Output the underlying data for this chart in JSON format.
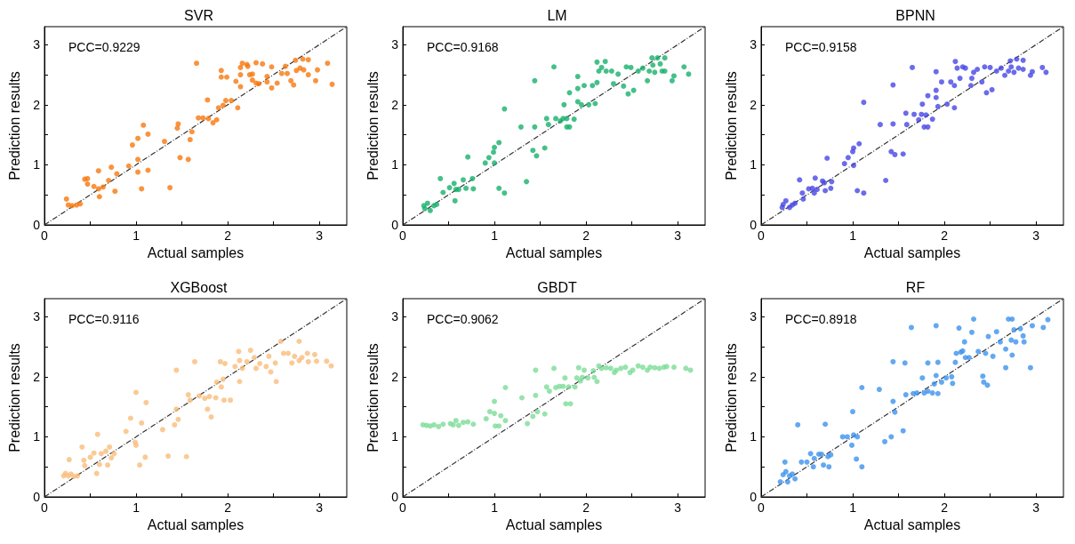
{
  "chart_data": [
    {
      "type": "scatter",
      "title": "SVR",
      "xlabel": "Actual samples",
      "ylabel": "Prediction results",
      "annotations": [
        "PCC=0.9229"
      ],
      "xlim": [
        0,
        3.3
      ],
      "ylim": [
        0,
        3.3
      ],
      "xticks": [
        0,
        {
          "value": 0.5,
          "label": null
        },
        1,
        {
          "value": 1.5,
          "label": null
        },
        2,
        {
          "value": 2.5,
          "label": null
        },
        3
      ],
      "yticks": [
        0,
        {
          "value": 0.5,
          "label": null
        },
        1,
        {
          "value": 1.5,
          "label": null
        },
        2,
        {
          "value": 2.5,
          "label": null
        },
        3
      ],
      "marker": "circle",
      "series": [
        {
          "color": "#f7780e",
          "x": [
            0.24,
            0.26,
            0.3,
            0.35,
            0.39,
            0.44,
            0.47,
            0.47,
            0.59,
            0.54,
            0.59,
            0.64,
            0.7,
            0.73,
            0.79,
            0.77,
            0.6,
            0.92,
            0.96,
            1.02,
            1.02,
            1.02,
            1.06,
            1.08,
            1.13,
            1.13,
            1.31,
            1.37,
            1.45,
            1.46,
            1.48,
            1.57,
            1.59,
            1.61,
            1.66,
            1.78,
            1.68,
            1.73,
            1.79,
            1.84,
            1.88,
            1.9,
            1.95,
            1.98,
            2.04,
            1.93,
            1.93,
            1.99,
            2.11,
            2.09,
            2.14,
            2.14,
            2.14,
            2.16,
            2.21,
            2.22,
            2.24,
            2.27,
            2.31,
            2.27,
            2.31,
            2.34,
            2.38,
            2.43,
            2.43,
            2.48,
            2.48,
            2.54,
            2.59,
            2.63,
            2.65,
            2.69,
            2.72,
            2.74,
            2.75,
            2.79,
            2.82,
            2.83,
            2.88,
            2.88,
            2.96,
            2.98,
            3.09,
            3.14
          ],
          "values": [
            0.43,
            0.33,
            0.32,
            0.33,
            0.35,
            0.76,
            0.77,
            0.68,
            0.9,
            0.64,
            0.6,
            0.63,
            0.74,
            0.96,
            0.85,
            0.56,
            0.47,
            0.98,
            1.33,
            1.44,
            1.09,
            0.88,
            0.6,
            1.66,
            1.51,
            0.91,
            1.39,
            0.62,
            1.61,
            1.68,
            1.12,
            1.09,
            1.42,
            1.55,
            2.69,
            2.08,
            1.78,
            1.78,
            1.77,
            1.7,
            1.75,
            1.95,
            1.99,
            2.07,
            2.07,
            2.57,
            2.46,
            2.46,
            1.95,
            2.39,
            2.62,
            2.5,
            2.3,
            2.69,
            2.67,
            2.64,
            2.5,
            2.51,
            2.7,
            2.41,
            2.36,
            2.35,
            2.68,
            2.47,
            2.38,
            2.28,
            2.63,
            2.36,
            2.52,
            2.64,
            2.52,
            2.4,
            2.33,
            2.74,
            2.57,
            2.61,
            2.76,
            2.58,
            2.75,
            2.5,
            2.4,
            2.58,
            2.69,
            2.34
          ]
        },
        {
          "type": "line",
          "color": "#333333",
          "line_style": "dashed",
          "marker": "none",
          "x": [
            0,
            3.3
          ],
          "values": [
            0,
            3.3
          ]
        }
      ]
    },
    {
      "type": "scatter",
      "title": "LM",
      "xlabel": "Actual samples",
      "ylabel": "Prediction results",
      "annotations": [
        "PCC=0.9168"
      ],
      "xlim": [
        0,
        3.3
      ],
      "ylim": [
        0,
        3.3
      ],
      "xticks": [
        0,
        {
          "value": 0.5,
          "label": null
        },
        1,
        {
          "value": 1.5,
          "label": null
        },
        2,
        {
          "value": 2.5,
          "label": null
        },
        3
      ],
      "yticks": [
        0,
        {
          "value": 0.5,
          "label": null
        },
        1,
        {
          "value": 1.5,
          "label": null
        },
        2,
        {
          "value": 2.5,
          "label": null
        },
        3
      ],
      "marker": "circle",
      "series": [
        {
          "color": "#16b06c",
          "x": [
            0.23,
            0.24,
            0.27,
            0.3,
            0.34,
            0.37,
            0.41,
            0.44,
            0.51,
            0.56,
            0.58,
            0.61,
            0.57,
            0.66,
            0.69,
            0.71,
            0.76,
            0.77,
            0.9,
            0.94,
            0.99,
            1.0,
            1.0,
            1.05,
            1.05,
            1.11,
            1.11,
            1.29,
            1.35,
            1.44,
            1.44,
            1.42,
            1.46,
            1.55,
            1.57,
            1.59,
            1.65,
            1.67,
            1.72,
            1.75,
            1.79,
            1.82,
            1.79,
            1.87,
            1.76,
            1.82,
            1.91,
            1.91,
            1.91,
            1.95,
            1.98,
            2.03,
            2.07,
            2.1,
            2.12,
            2.12,
            2.14,
            2.17,
            2.21,
            2.22,
            2.28,
            2.3,
            2.35,
            2.41,
            2.44,
            2.46,
            2.49,
            2.52,
            2.57,
            2.62,
            2.67,
            2.69,
            2.72,
            2.73,
            2.75,
            2.78,
            2.81,
            2.83,
            2.86,
            2.86,
            2.94,
            2.96,
            3.07,
            3.12
          ],
          "values": [
            0.32,
            0.27,
            0.36,
            0.24,
            0.32,
            0.34,
            0.77,
            0.54,
            0.62,
            0.69,
            0.59,
            0.59,
            0.4,
            0.75,
            0.61,
            1.13,
            0.77,
            0.6,
            1.03,
            1.12,
            1.21,
            1.29,
            1.03,
            0.61,
            1.37,
            0.53,
            1.93,
            1.63,
            0.72,
            2.4,
            1.63,
            1.24,
            1.15,
            1.28,
            1.77,
            1.67,
            2.63,
            1.77,
            1.73,
            1.77,
            1.63,
            1.63,
            1.77,
            1.76,
            2.0,
            2.2,
            2.47,
            2.27,
            2.05,
            2.0,
            2.32,
            2.0,
            2.32,
            2.02,
            2.37,
            2.71,
            2.56,
            2.62,
            2.72,
            2.56,
            2.56,
            2.35,
            2.51,
            2.31,
            2.63,
            2.18,
            2.62,
            2.24,
            2.56,
            2.61,
            2.4,
            2.56,
            2.78,
            2.66,
            2.54,
            2.78,
            2.68,
            2.56,
            2.78,
            2.56,
            2.4,
            2.48,
            2.63,
            2.51
          ]
        },
        {
          "type": "line",
          "color": "#333333",
          "line_style": "dashed",
          "marker": "none",
          "x": [
            0,
            3.3
          ],
          "values": [
            0,
            3.3
          ]
        }
      ]
    },
    {
      "type": "scatter",
      "title": "BPNN",
      "xlabel": "Actual samples",
      "ylabel": "Prediction results",
      "annotations": [
        "PCC=0.9158"
      ],
      "xlim": [
        0,
        3.3
      ],
      "ylim": [
        0,
        3.3
      ],
      "xticks": [
        0,
        {
          "value": 0.5,
          "label": null
        },
        1,
        {
          "value": 1.5,
          "label": null
        },
        2,
        {
          "value": 2.5,
          "label": null
        },
        3
      ],
      "yticks": [
        0,
        {
          "value": 0.5,
          "label": null
        },
        1,
        {
          "value": 1.5,
          "label": null
        },
        2,
        {
          "value": 2.5,
          "label": null
        },
        3
      ],
      "marker": "circle",
      "series": [
        {
          "color": "#4646e6",
          "x": [
            0.23,
            0.24,
            0.27,
            0.31,
            0.34,
            0.37,
            0.42,
            0.45,
            0.46,
            0.52,
            0.56,
            0.58,
            0.59,
            0.61,
            0.67,
            0.69,
            0.7,
            0.72,
            0.76,
            0.77,
            0.91,
            0.95,
            1.0,
            1.01,
            1.01,
            1.05,
            1.07,
            1.12,
            1.12,
            1.3,
            1.36,
            1.44,
            1.44,
            1.42,
            1.46,
            1.55,
            1.58,
            1.59,
            1.65,
            1.67,
            1.72,
            1.75,
            1.78,
            1.82,
            1.8,
            1.87,
            1.76,
            1.82,
            1.91,
            1.91,
            1.91,
            1.93,
            1.97,
            2.03,
            2.07,
            2.11,
            2.11,
            2.12,
            2.14,
            2.17,
            2.2,
            2.23,
            2.29,
            2.3,
            2.32,
            2.36,
            2.41,
            2.44,
            2.46,
            2.5,
            2.52,
            2.57,
            2.62,
            2.66,
            2.7,
            2.72,
            2.73,
            2.76,
            2.79,
            2.81,
            2.86,
            2.86,
            2.94,
            2.96,
            3.07,
            3.11
          ],
          "values": [
            0.29,
            0.34,
            0.4,
            0.29,
            0.33,
            0.36,
            0.75,
            0.53,
            0.43,
            0.6,
            0.61,
            0.53,
            0.78,
            0.59,
            0.73,
            0.7,
            0.57,
            1.11,
            0.61,
            0.72,
            1.02,
            1.12,
            1.22,
            1.28,
            0.99,
            0.57,
            1.35,
            0.53,
            2.04,
            1.67,
            0.74,
            2.33,
            1.68,
            1.22,
            1.17,
            1.18,
            1.86,
            1.67,
            2.62,
            1.84,
            1.75,
            1.84,
            1.63,
            1.63,
            1.83,
            1.76,
            2.01,
            2.15,
            2.55,
            2.24,
            2.12,
            1.97,
            2.38,
            2.01,
            2.38,
            1.95,
            2.32,
            2.72,
            2.61,
            2.44,
            2.63,
            2.61,
            2.32,
            2.44,
            2.54,
            2.59,
            2.38,
            2.63,
            2.2,
            2.62,
            2.25,
            2.56,
            2.61,
            2.49,
            2.56,
            2.73,
            2.63,
            2.54,
            2.76,
            2.61,
            2.74,
            2.59,
            2.49,
            2.55,
            2.62,
            2.54
          ]
        },
        {
          "type": "line",
          "color": "#333333",
          "line_style": "dashed",
          "marker": "none",
          "x": [
            0,
            3.3
          ],
          "values": [
            0,
            3.3
          ]
        }
      ]
    },
    {
      "type": "scatter",
      "title": "XGBoost",
      "xlabel": "Actual samples",
      "ylabel": "Prediction results",
      "annotations": [
        "PCC=0.9116"
      ],
      "xlim": [
        0,
        3.3
      ],
      "ylim": [
        0,
        3.3
      ],
      "xticks": [
        0,
        {
          "value": 0.5,
          "label": null
        },
        1,
        {
          "value": 1.5,
          "label": null
        },
        2,
        {
          "value": 2.5,
          "label": null
        },
        3
      ],
      "yticks": [
        0,
        {
          "value": 0.5,
          "label": null
        },
        1,
        {
          "value": 1.5,
          "label": null
        },
        2,
        {
          "value": 2.5,
          "label": null
        },
        3
      ],
      "marker": "circle",
      "series": [
        {
          "color": "#f9bd7c",
          "x": [
            0.21,
            0.23,
            0.26,
            0.29,
            0.32,
            0.36,
            0.27,
            0.41,
            0.43,
            0.44,
            0.5,
            0.54,
            0.57,
            0.58,
            0.6,
            0.62,
            0.67,
            0.69,
            0.71,
            0.73,
            0.76,
            0.89,
            0.94,
            1.0,
            0.99,
            1.0,
            1.04,
            1.06,
            1.1,
            1.11,
            1.29,
            1.35,
            1.44,
            1.44,
            1.42,
            1.46,
            1.55,
            1.57,
            1.59,
            1.64,
            1.69,
            1.75,
            1.8,
            1.78,
            1.82,
            1.87,
            1.88,
            1.93,
            1.95,
            1.92,
            1.97,
            1.96,
            2.03,
            2.08,
            2.13,
            2.12,
            2.13,
            2.16,
            2.21,
            2.25,
            2.29,
            2.31,
            2.35,
            2.42,
            2.47,
            2.45,
            2.52,
            2.53,
            2.58,
            2.61,
            2.66,
            2.7,
            2.73,
            2.78,
            2.78,
            2.81,
            2.87,
            2.88,
            2.95,
            2.97,
            3.08,
            3.13
          ],
          "values": [
            0.35,
            0.39,
            0.35,
            0.38,
            0.34,
            0.35,
            0.62,
            0.83,
            0.61,
            0.52,
            0.66,
            0.73,
            0.39,
            1.04,
            0.54,
            0.72,
            0.76,
            0.53,
            0.83,
            0.65,
            0.72,
            1.09,
            1.31,
            1.74,
            0.91,
            0.86,
            0.53,
            1.23,
            0.66,
            1.57,
            1.12,
            0.68,
            2.11,
            1.46,
            1.2,
            1.29,
            0.67,
            1.7,
            1.61,
            2.25,
            1.68,
            1.64,
            1.67,
            1.46,
            1.33,
            1.65,
            1.91,
            1.83,
            1.96,
            2.25,
            2.22,
            1.61,
            1.61,
            2.17,
            1.92,
            2.42,
            2.27,
            2.14,
            2.25,
            2.44,
            2.32,
            2.14,
            2.22,
            2.17,
            2.08,
            2.34,
            2.23,
            1.92,
            2.59,
            2.39,
            2.39,
            2.23,
            2.34,
            2.59,
            2.27,
            2.32,
            2.39,
            2.25,
            2.37,
            2.26,
            2.26,
            2.18
          ]
        },
        {
          "type": "line",
          "color": "#333333",
          "line_style": "dashed",
          "marker": "none",
          "x": [
            0,
            3.3
          ],
          "values": [
            0,
            3.3
          ]
        }
      ]
    },
    {
      "type": "scatter",
      "title": "GBDT",
      "xlabel": "Actual samples",
      "ylabel": "Prediction results",
      "annotations": [
        "PCC=0.9062"
      ],
      "xlim": [
        0,
        3.3
      ],
      "ylim": [
        0,
        3.3
      ],
      "xticks": [
        0,
        {
          "value": 0.5,
          "label": null
        },
        1,
        {
          "value": 1.5,
          "label": null
        },
        2,
        {
          "value": 2.5,
          "label": null
        },
        3
      ],
      "yticks": [
        0,
        {
          "value": 0.5,
          "label": null
        },
        1,
        {
          "value": 1.5,
          "label": null
        },
        2,
        {
          "value": 2.5,
          "label": null
        },
        3
      ],
      "marker": "circle",
      "series": [
        {
          "color": "#7ddc99",
          "x": [
            0.22,
            0.26,
            0.3,
            0.34,
            0.39,
            0.44,
            0.52,
            0.55,
            0.58,
            0.61,
            0.66,
            0.71,
            0.77,
            0.91,
            0.95,
            1.0,
            1.0,
            1.01,
            1.05,
            1.07,
            1.12,
            1.12,
            1.3,
            1.36,
            1.42,
            1.45,
            1.45,
            1.47,
            1.55,
            1.57,
            1.6,
            1.65,
            1.67,
            1.71,
            1.75,
            1.77,
            1.78,
            1.83,
            1.81,
            1.88,
            1.9,
            1.92,
            1.94,
            1.96,
            1.98,
            2.02,
            2.09,
            2.12,
            2.08,
            2.14,
            2.17,
            2.22,
            2.27,
            2.31,
            2.33,
            2.38,
            2.43,
            2.48,
            2.51,
            2.57,
            2.62,
            2.67,
            2.7,
            2.75,
            2.8,
            2.85,
            2.88,
            2.96,
            3.09,
            3.14
          ],
          "values": [
            1.2,
            1.19,
            1.18,
            1.2,
            1.17,
            1.21,
            1.22,
            1.2,
            1.27,
            1.19,
            1.24,
            1.25,
            1.21,
            1.3,
            1.42,
            1.59,
            1.39,
            1.18,
            1.18,
            1.35,
            1.82,
            1.27,
            1.65,
            1.22,
            1.34,
            2.11,
            1.69,
            1.42,
            1.38,
            1.83,
            1.76,
            2.14,
            1.82,
            1.84,
            1.84,
            1.98,
            1.55,
            1.55,
            1.83,
            1.83,
            1.98,
            2.15,
            1.93,
            1.99,
            2.11,
            1.98,
            1.99,
            1.92,
            2.1,
            2.18,
            2.14,
            2.15,
            2.14,
            2.07,
            2.11,
            2.14,
            2.16,
            2.07,
            2.11,
            2.18,
            2.16,
            2.11,
            2.16,
            2.15,
            2.14,
            2.16,
            2.17,
            2.16,
            2.14,
            2.11
          ]
        },
        {
          "type": "line",
          "color": "#333333",
          "line_style": "dashed",
          "marker": "none",
          "x": [
            0,
            3.3
          ],
          "values": [
            0,
            3.3
          ]
        }
      ]
    },
    {
      "type": "scatter",
      "title": "RF",
      "xlabel": "Actual samples",
      "ylabel": "Prediction results",
      "annotations": [
        "PCC=0.8918"
      ],
      "xlim": [
        0,
        3.3
      ],
      "ylim": [
        0,
        3.3
      ],
      "xticks": [
        0,
        {
          "value": 0.5,
          "label": null
        },
        1,
        {
          "value": 1.5,
          "label": null
        },
        2,
        {
          "value": 2.5,
          "label": null
        },
        3
      ],
      "yticks": [
        0,
        {
          "value": 0.5,
          "label": null
        },
        1,
        {
          "value": 1.5,
          "label": null
        },
        2,
        {
          "value": 2.5,
          "label": null
        },
        3
      ],
      "marker": "circle",
      "series": [
        {
          "color": "#3c92ee",
          "x": [
            0.21,
            0.24,
            0.26,
            0.27,
            0.29,
            0.31,
            0.34,
            0.37,
            0.4,
            0.44,
            0.5,
            0.54,
            0.57,
            0.58,
            0.63,
            0.66,
            0.68,
            0.7,
            0.73,
            0.74,
            0.76,
            0.89,
            0.94,
            0.99,
            1.0,
            1.01,
            1.04,
            1.05,
            1.1,
            1.1,
            1.29,
            1.35,
            1.42,
            1.44,
            1.44,
            1.46,
            1.55,
            1.57,
            1.58,
            1.64,
            1.66,
            1.7,
            1.76,
            1.78,
            1.82,
            1.82,
            1.87,
            1.89,
            1.91,
            1.91,
            1.93,
            1.93,
            1.97,
            2.02,
            2.08,
            2.09,
            2.12,
            2.13,
            2.16,
            2.18,
            2.2,
            2.22,
            2.23,
            2.27,
            2.3,
            2.32,
            2.37,
            2.42,
            2.43,
            2.45,
            2.47,
            2.48,
            2.53,
            2.57,
            2.61,
            2.67,
            2.67,
            2.7,
            2.73,
            2.74,
            2.74,
            2.76,
            2.78,
            2.83,
            2.86,
            2.87,
            2.94,
            2.96,
            3.08,
            3.13
          ],
          "values": [
            0.25,
            0.37,
            0.58,
            0.42,
            0.25,
            0.35,
            0.38,
            0.3,
            1.2,
            0.58,
            0.58,
            0.72,
            0.5,
            0.64,
            0.71,
            0.71,
            0.53,
            1.21,
            0.67,
            0.5,
            0.7,
            1.0,
            1.0,
            0.86,
            1.42,
            1.03,
            0.63,
            1.0,
            1.82,
            0.5,
            1.79,
            0.92,
            1.0,
            2.25,
            1.59,
            1.41,
            1.1,
            2.23,
            1.7,
            2.82,
            1.72,
            1.73,
            1.98,
            1.73,
            1.76,
            2.23,
            1.73,
            1.88,
            2.02,
            2.85,
            1.72,
            2.24,
            1.91,
            1.98,
            2.0,
            1.89,
            2.24,
            2.39,
            2.81,
            2.41,
            2.43,
            2.58,
            2.32,
            2.32,
            2.74,
            2.96,
            2.42,
            2.01,
            1.91,
            2.39,
            1.86,
            2.67,
            2.34,
            2.75,
            2.58,
            2.46,
            2.15,
            2.96,
            2.61,
            2.96,
            2.36,
            2.78,
            2.58,
            2.8,
            2.68,
            2.58,
            2.15,
            2.85,
            2.82,
            2.95
          ]
        },
        {
          "type": "line",
          "color": "#333333",
          "line_style": "dashed",
          "marker": "none",
          "x": [
            0,
            3.3
          ],
          "values": [
            0,
            3.3
          ]
        }
      ]
    }
  ]
}
